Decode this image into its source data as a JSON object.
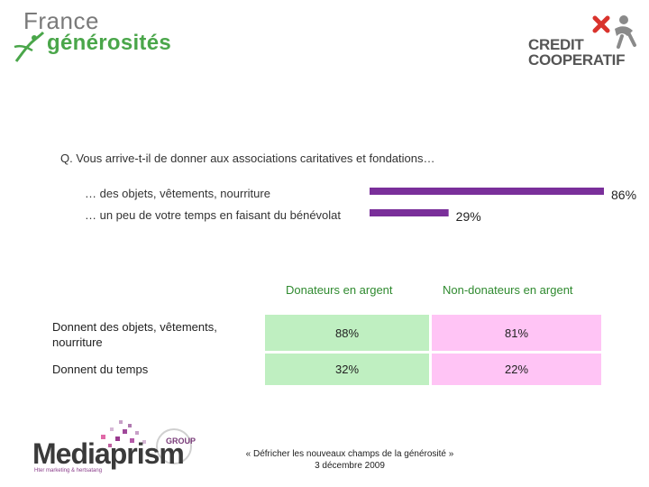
{
  "logos": {
    "france_generosites": {
      "line1": "France",
      "line2": "générosités"
    },
    "credit_cooperatif": {
      "line1": "CREDIT",
      "line2": "COOPERATIF"
    },
    "mediaprism": {
      "name": "Mediaprism",
      "group": "GROUP",
      "tagline": "Hter marketing & hertsatang"
    }
  },
  "colors": {
    "bar": "#7a2f9a",
    "green_cell": "#bfefc1",
    "pink_cell": "#ffc4f5",
    "header_green": "#2f8a2f"
  },
  "question": "Q.   Vous arrive-t-il de donner aux associations caritatives et fondations…",
  "chart_data": {
    "type": "bar",
    "orientation": "horizontal",
    "categories": [
      "… des objets, vêtements, nourriture",
      "… un peu de votre temps en faisant du bénévolat"
    ],
    "values": [
      86,
      29
    ],
    "value_labels": [
      "86%",
      "29%"
    ],
    "xlim": [
      0,
      86
    ],
    "title": "",
    "xlabel": "",
    "ylabel": ""
  },
  "table": {
    "columns": [
      "Donateurs en argent",
      "Non-donateurs en argent"
    ],
    "rows": [
      {
        "label": "Donnent des objets, vêtements, nourriture",
        "values": [
          "88%",
          "81%"
        ]
      },
      {
        "label": "Donnent du temps",
        "values": [
          "32%",
          "22%"
        ]
      }
    ]
  },
  "footer": {
    "line1": "« Défricher les nouveaux champs de la générosité »",
    "line2": "3 décembre 2009"
  }
}
